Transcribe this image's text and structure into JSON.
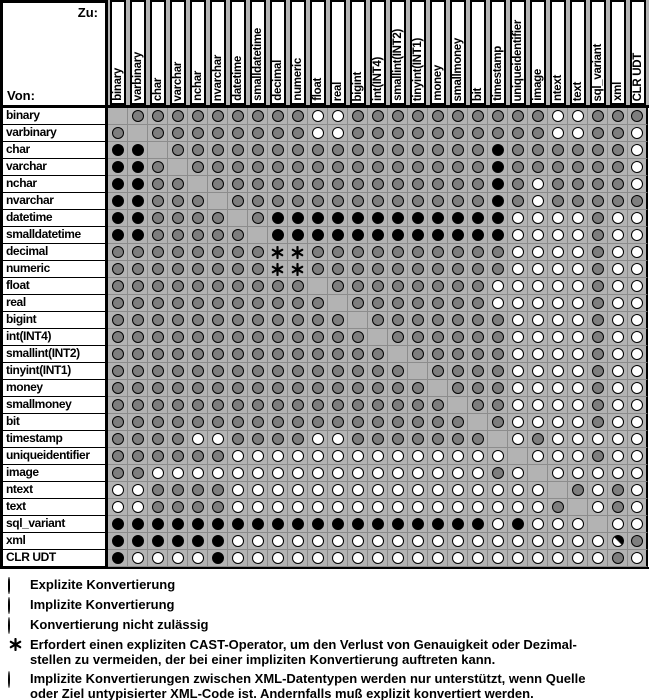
{
  "header": {
    "to_label": "Zu:",
    "from_label": "Von:"
  },
  "columns": [
    "binary",
    "varbinary",
    "char",
    "varchar",
    "nchar",
    "nvarchar",
    "datetime",
    "smalldatetime",
    "decimal",
    "numeric",
    "float",
    "real",
    "bigint",
    "int(INT4)",
    "smallint(INT2)",
    "tinyint(INT1)",
    "money",
    "smallmoney",
    "bit",
    "timestamp",
    "uniqueidentifier",
    "image",
    "ntext",
    "text",
    "sql_variant",
    "xml",
    "CLR UDT"
  ],
  "rows": [
    "binary",
    "varbinary",
    "char",
    "varchar",
    "nchar",
    "nvarchar",
    "datetime",
    "smalldatetime",
    "decimal",
    "numeric",
    "float",
    "real",
    "bigint",
    "int(INT4)",
    "smallint(INT2)",
    "tinyint(INT1)",
    "money",
    "smallmoney",
    "bit",
    "timestamp",
    "uniqueidentifier",
    "image",
    "ntext",
    "text",
    "sql_variant",
    "xml",
    "CLR UDT"
  ],
  "symbol_key": {
    "E": "explizite Konvertierung (schwarz)",
    "I": "implizite Konvertierung (grau)",
    "N": "Konvertierung nicht zulässig (weiß)",
    "*": "expliziter CAST-Operator erforderlich",
    "X": "XML implizit nur bei untypisiertem XML",
    "-": "leere Diagonalzelle"
  },
  "matrix": [
    "-IIIIIIIIINNIIIIIIIIIINNIII",
    "I-IIIIIIIINNIIIIIIIIIINNIIN",
    "EE-IIIIIIIIIIIIIIIIEIIIIIIN",
    "EEI-IIIIIIIIIIIIIIIEIIIIIIN",
    "EEII-IIIIIIIIIIIIIIEINIIIIN",
    "EEIII-IIIIIIIIIIIIIEINIIIII",
    "EEIIII-IEEEEEEEEEEEENNNNINN",
    "EEIIIII-EEEEEEEEEEEENNNNINN",
    "IIIIIIII**IIIIIIIIIINNNNINN",
    "IIIIIIII**IIIIIIIIIINNNNINN",
    "IIIIIIIIII-IIIIIIIINNNNNINN",
    "IIIIIIIIIII-IIIIIIINNNNNINN",
    "IIIIIIIIIIII-IIIIIIINNNNINN",
    "IIIIIIIIIIIII-IIIIIINNNNINN",
    "IIIIIIIIIIIIII-IIIIINNNNINN",
    "IIIIIIIIIIIIIII-IIIINNNNINN",
    "IIIIIIIIIIIIIIII-IIINNNNINN",
    "IIIIIIIIIIIIIIIII-IINNNNINN",
    "IIIIIIIIIIIIIIIIII-INNNNINN",
    "IIIINNIIIINNIIIIIII-NINNNNN",
    "IIIIIINNNNNNNNNNNNNN-NNNINN",
    "IINNNNNNNNNNNNNNNNNIN-NNNNN",
    "NNIIIINNNNNNNNNNNNNNNN-ININ",
    "NNIIIINNNNNNNNNNNNNNNNI-NIN",
    "EEEEEEEEEEEEEEEEEEENENNN-NN",
    "EEEEEENNNNNNNNNNNNNNNNNNNXI",
    "ENNNNENNNNNNNNNNNNNNNNNNNIN"
  ],
  "legend": {
    "items": [
      {
        "type": "E",
        "lines": [
          "Explizite Konvertierung"
        ]
      },
      {
        "type": "I",
        "lines": [
          "Implizite Konvertierung"
        ]
      },
      {
        "type": "N",
        "lines": [
          "Konvertierung nicht zulässig"
        ]
      },
      {
        "type": "*",
        "lines": [
          "Erfordert einen expliziten CAST-Operator, um den Verlust von Genauigkeit oder Dezimal-",
          "stellen zu vermeiden, der bei einer impliziten Konvertierung auftreten kann."
        ]
      },
      {
        "type": "X",
        "lines": [
          "Implizite Konvertierungen zwischen XML-Datentypen werden nur unterstützt, wenn Quelle",
          "oder Ziel untypisierter XML-Code ist. Andernfalls muß explizit konvertiert werden."
        ]
      }
    ]
  },
  "colors": {
    "grid_background": "#b3b3b3",
    "grid_line": "#8c8c8c",
    "explicit_black": "#000000",
    "implicit_gray": "#7e7e7e",
    "not_allowed_white": "#ffffff"
  }
}
